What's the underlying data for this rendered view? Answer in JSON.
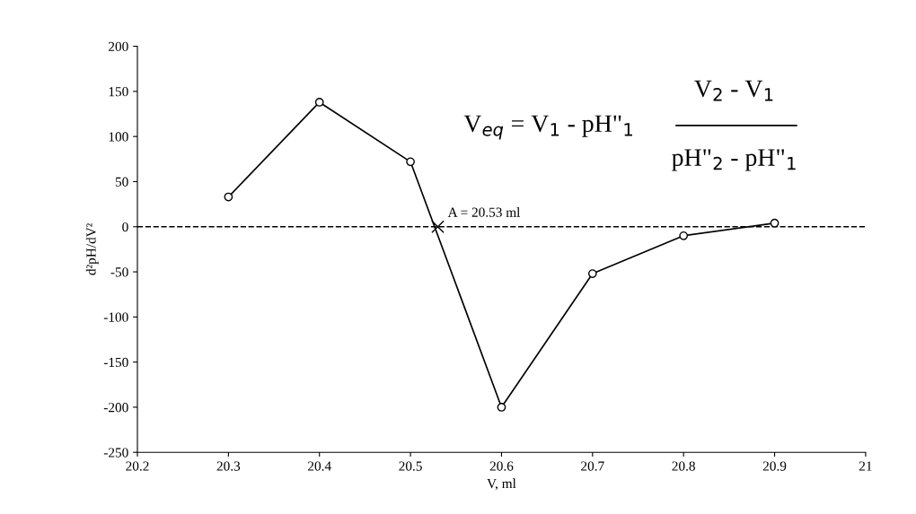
{
  "chart_data": {
    "type": "line",
    "xlabel": "V, ml",
    "ylabel": "d²pH/dV²",
    "x": [
      20.3,
      20.4,
      20.5,
      20.6,
      20.7,
      20.8,
      20.9
    ],
    "series": [
      {
        "color": "#000000",
        "values": [
          33,
          138,
          72,
          -200,
          -52,
          -10,
          4
        ],
        "marker": "circle",
        "line_style": "solid"
      },
      {
        "type": "scatter",
        "color": "#000000",
        "x": [
          20.53
        ],
        "values": [
          0
        ],
        "marker": "cross"
      }
    ],
    "ref_lines": [
      {
        "axis": "y",
        "value": 0,
        "color": "#000000",
        "line_style": "dashed"
      }
    ],
    "annotations": [
      {
        "text": "A = 20.53 ml",
        "x": 20.53,
        "y": 0
      },
      "V$_{eq}$ = V$_{1}$ - pH\"$_{1}$",
      "V$_{2}$ - V$_{1}$",
      "pH\"$_{2}$ - pH\"$_{1}$"
    ],
    "xlim": [
      20.2,
      21
    ],
    "xticks": [
      20.2,
      20.3,
      20.4,
      20.5,
      20.6,
      20.7,
      20.8,
      20.9,
      21
    ],
    "ylim": [
      -250,
      200
    ],
    "yticks": [
      -250,
      -200,
      -150,
      -100,
      -50,
      0,
      50,
      100,
      150,
      200
    ],
    "grid": false,
    "legend": false
  }
}
